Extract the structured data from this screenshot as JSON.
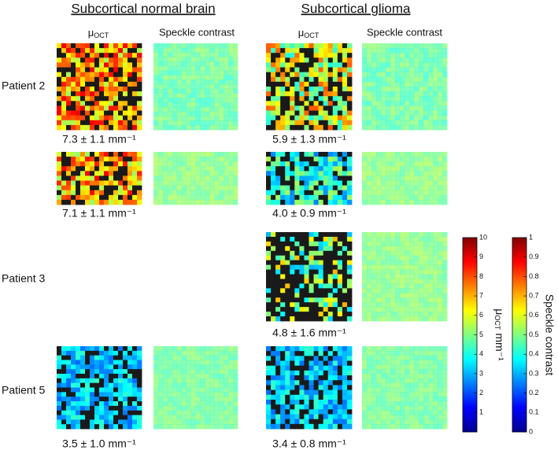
{
  "headers": [
    "Subcortical normal brain",
    "Subcortical glioma"
  ],
  "column_labels": {
    "mu": {
      "symbol": "μ",
      "subscript": "OCT"
    },
    "speckle": "Speckle contrast"
  },
  "patients": [
    "Patient 2",
    "Patient 3",
    "Patient 5"
  ],
  "measurements": [
    "7.3 ± 1.1 mm⁻¹",
    "5.9 ± 1.3 mm⁻¹",
    "7.1 ± 1.1 mm⁻¹",
    "4.0 ± 0.9 mm⁻¹",
    "4.8 ± 1.6 mm⁻¹",
    "3.5 ± 1.0 mm⁻¹",
    "3.4 ± 0.8 mm⁻¹"
  ],
  "colorbars": [
    {
      "label": {
        "symbol": "μ",
        "subscript": "OCT",
        "unit": "mm⁻¹"
      },
      "lim": [
        0,
        10
      ],
      "ticks": [
        1,
        2,
        3,
        4,
        5,
        6,
        7,
        8,
        9,
        10
      ]
    },
    {
      "label": "Speckle contrast",
      "lim": [
        0,
        1
      ],
      "ticks": [
        0,
        0.1,
        0.2,
        0.3,
        0.4,
        0.5,
        0.6,
        0.7,
        0.8,
        0.9,
        1
      ]
    }
  ]
}
